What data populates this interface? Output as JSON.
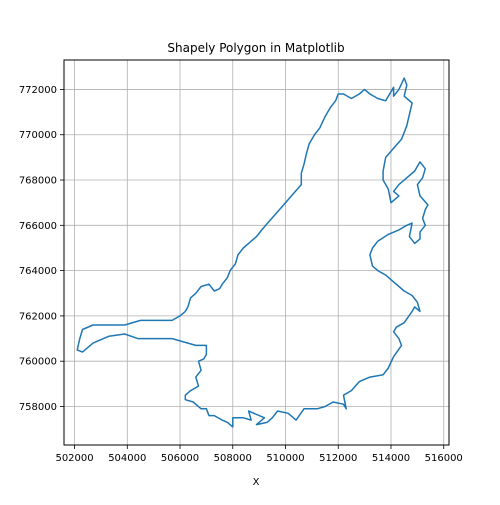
{
  "chart_data": {
    "type": "line",
    "title": "Shapely Polygon in Matplotlib",
    "xlabel": "X",
    "ylabel": "",
    "xlim": [
      501600,
      516200
    ],
    "ylim": [
      756300,
      773300
    ],
    "x_ticks": [
      502000,
      504000,
      506000,
      508000,
      510000,
      512000,
      514000,
      516000
    ],
    "y_ticks": [
      758000,
      760000,
      762000,
      764000,
      766000,
      768000,
      770000,
      772000
    ],
    "x_tick_labels": [
      "502000",
      "504000",
      "506000",
      "508000",
      "510000",
      "512000",
      "514000",
      "516000"
    ],
    "y_tick_labels": [
      "758000",
      "760000",
      "762000",
      "764000",
      "766000",
      "768000",
      "770000",
      "772000"
    ],
    "grid": true,
    "series": [
      {
        "color": "#1f77b4",
        "points": [
          [
            502200,
            761000
          ],
          [
            502100,
            760500
          ],
          [
            502300,
            760400
          ],
          [
            502700,
            760800
          ],
          [
            503300,
            761100
          ],
          [
            503900,
            761200
          ],
          [
            504400,
            761000
          ],
          [
            505200,
            761000
          ],
          [
            505700,
            761000
          ],
          [
            506600,
            760700
          ],
          [
            507000,
            760700
          ],
          [
            507000,
            760300
          ],
          [
            506900,
            760100
          ],
          [
            506700,
            760000
          ],
          [
            506800,
            759600
          ],
          [
            506600,
            759300
          ],
          [
            506700,
            758900
          ],
          [
            506400,
            758700
          ],
          [
            506200,
            758500
          ],
          [
            506200,
            758300
          ],
          [
            506500,
            758200
          ],
          [
            506800,
            757900
          ],
          [
            507000,
            757900
          ],
          [
            507100,
            757600
          ],
          [
            507300,
            757600
          ],
          [
            507600,
            757400
          ],
          [
            507800,
            757300
          ],
          [
            508000,
            757100
          ],
          [
            508000,
            757500
          ],
          [
            508400,
            757500
          ],
          [
            508700,
            757400
          ],
          [
            508600,
            757800
          ],
          [
            508800,
            757700
          ],
          [
            509200,
            757500
          ],
          [
            508900,
            757200
          ],
          [
            509300,
            757300
          ],
          [
            509500,
            757500
          ],
          [
            509700,
            757800
          ],
          [
            510100,
            757700
          ],
          [
            510400,
            757400
          ],
          [
            510700,
            757900
          ],
          [
            511200,
            757900
          ],
          [
            511500,
            758000
          ],
          [
            511800,
            758200
          ],
          [
            512200,
            758100
          ],
          [
            512300,
            757900
          ],
          [
            512200,
            758500
          ],
          [
            512500,
            758700
          ],
          [
            512800,
            759100
          ],
          [
            513200,
            759300
          ],
          [
            513700,
            759400
          ],
          [
            513900,
            759700
          ],
          [
            514100,
            760200
          ],
          [
            514400,
            760700
          ],
          [
            514300,
            761000
          ],
          [
            514100,
            761300
          ],
          [
            514200,
            761500
          ],
          [
            514500,
            761700
          ],
          [
            514800,
            762200
          ],
          [
            514900,
            762400
          ],
          [
            515100,
            762200
          ],
          [
            515000,
            762600
          ],
          [
            514800,
            762900
          ],
          [
            514500,
            763100
          ],
          [
            514100,
            763500
          ],
          [
            513800,
            763800
          ],
          [
            513500,
            764000
          ],
          [
            513300,
            764200
          ],
          [
            513200,
            764700
          ],
          [
            513300,
            765000
          ],
          [
            513500,
            765300
          ],
          [
            513900,
            765600
          ],
          [
            514300,
            765800
          ],
          [
            514600,
            766000
          ],
          [
            514800,
            766100
          ],
          [
            514700,
            765500
          ],
          [
            514900,
            765200
          ],
          [
            515100,
            765400
          ],
          [
            515100,
            765700
          ],
          [
            515300,
            766000
          ],
          [
            515200,
            766300
          ],
          [
            515300,
            766700
          ],
          [
            515400,
            766900
          ],
          [
            515100,
            767300
          ],
          [
            515000,
            767800
          ],
          [
            515200,
            768100
          ],
          [
            515300,
            768500
          ],
          [
            515100,
            768800
          ],
          [
            514900,
            768400
          ],
          [
            514600,
            768100
          ],
          [
            514300,
            767800
          ],
          [
            514100,
            767500
          ],
          [
            514300,
            767300
          ],
          [
            514000,
            767000
          ],
          [
            513900,
            767600
          ],
          [
            513700,
            768000
          ],
          [
            513700,
            768400
          ],
          [
            513800,
            769000
          ],
          [
            514100,
            769400
          ],
          [
            514400,
            769800
          ],
          [
            514600,
            770400
          ],
          [
            514700,
            770900
          ],
          [
            514800,
            771400
          ],
          [
            514500,
            771700
          ],
          [
            514600,
            772200
          ],
          [
            514500,
            772500
          ],
          [
            514300,
            772000
          ],
          [
            514100,
            771700
          ],
          [
            514100,
            772100
          ],
          [
            513800,
            771500
          ],
          [
            513500,
            771600
          ],
          [
            513200,
            771800
          ],
          [
            513000,
            772000
          ],
          [
            512800,
            771800
          ],
          [
            512500,
            771600
          ],
          [
            512200,
            771800
          ],
          [
            512000,
            771800
          ],
          [
            511900,
            771500
          ],
          [
            511700,
            771200
          ],
          [
            511500,
            770800
          ],
          [
            511300,
            770300
          ],
          [
            511100,
            770000
          ],
          [
            510900,
            769600
          ],
          [
            510800,
            769200
          ],
          [
            510700,
            768700
          ],
          [
            510600,
            768300
          ],
          [
            510600,
            767800
          ],
          [
            510300,
            767400
          ],
          [
            510000,
            767000
          ],
          [
            509700,
            766600
          ],
          [
            509400,
            766200
          ],
          [
            509100,
            765800
          ],
          [
            508900,
            765500
          ],
          [
            508600,
            765200
          ],
          [
            508400,
            765000
          ],
          [
            508200,
            764700
          ],
          [
            508100,
            764300
          ],
          [
            507900,
            764000
          ],
          [
            507800,
            763700
          ],
          [
            507600,
            763400
          ],
          [
            507500,
            763200
          ],
          [
            507300,
            763100
          ],
          [
            507100,
            763400
          ],
          [
            506800,
            763300
          ],
          [
            506600,
            763000
          ],
          [
            506400,
            762800
          ],
          [
            506300,
            762400
          ],
          [
            506200,
            762200
          ],
          [
            506000,
            762000
          ],
          [
            505700,
            761800
          ],
          [
            505000,
            761800
          ],
          [
            504500,
            761800
          ],
          [
            503900,
            761600
          ],
          [
            503300,
            761600
          ],
          [
            502700,
            761600
          ],
          [
            502300,
            761400
          ],
          [
            502200,
            761000
          ]
        ]
      }
    ]
  }
}
